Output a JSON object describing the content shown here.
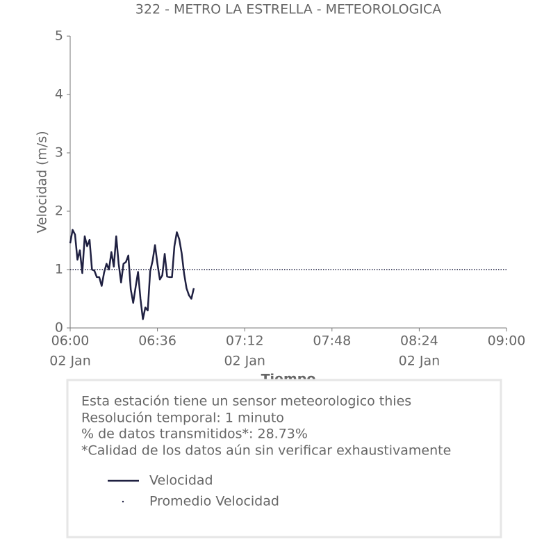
{
  "chart_data": {
    "type": "line",
    "title": "322 - METRO LA ESTRELLA - METEOROLOGICA",
    "y_label": "Velocidad (m/s)",
    "x_label": "Tiempo",
    "x": [
      "06:00",
      "06:01",
      "06:02",
      "06:03",
      "06:04",
      "06:05",
      "06:06",
      "06:07",
      "06:08",
      "06:09",
      "06:10",
      "06:11",
      "06:12",
      "06:13",
      "06:14",
      "06:15",
      "06:16",
      "06:17",
      "06:18",
      "06:19",
      "06:20",
      "06:21",
      "06:22",
      "06:23",
      "06:24",
      "06:25",
      "06:26",
      "06:27",
      "06:28",
      "06:29",
      "06:30",
      "06:31",
      "06:32",
      "06:33",
      "06:34",
      "06:35",
      "06:36",
      "06:37",
      "06:38",
      "06:39",
      "06:40",
      "06:41",
      "06:42",
      "06:43",
      "06:44",
      "06:45",
      "06:46",
      "06:47",
      "06:48",
      "06:49",
      "06:50",
      "06:51"
    ],
    "series": [
      {
        "name": "Velocidad",
        "color": "#1f2041",
        "values": [
          1.45,
          1.68,
          1.6,
          1.17,
          1.33,
          0.94,
          1.57,
          1.4,
          1.51,
          1.0,
          0.98,
          0.87,
          0.87,
          0.72,
          0.95,
          1.1,
          1.0,
          1.3,
          1.05,
          1.57,
          1.1,
          0.78,
          1.1,
          1.13,
          1.24,
          0.66,
          0.43,
          0.7,
          0.96,
          0.5,
          0.15,
          0.35,
          0.3,
          0.97,
          1.15,
          1.42,
          1.1,
          0.83,
          0.9,
          1.27,
          0.88,
          0.87,
          0.87,
          1.4,
          1.64,
          1.52,
          1.28,
          0.93,
          0.68,
          0.56,
          0.5,
          0.68
        ]
      },
      {
        "name": "Promedio Velocidad",
        "color": "#1f2041",
        "style": "dotted",
        "value": 1.0
      }
    ],
    "xlim": [
      "06:00",
      "09:00"
    ],
    "xticks": [
      "06:00",
      "06:36",
      "07:12",
      "07:48",
      "08:24",
      "09:00"
    ],
    "xtick_dates": [
      "02 Jan",
      null,
      "02 Jan",
      null,
      "02 Jan",
      null
    ],
    "ylim": [
      0,
      5
    ],
    "yticks": [
      0,
      1,
      2,
      3,
      4,
      5
    ],
    "grid": false
  },
  "info": {
    "lines": [
      "Esta estación tiene un sensor meteorologico thies",
      "Resolución temporal: 1 minuto",
      "% de datos transmitidos*: 28.73%",
      "*Calidad de los datos aún sin verificar exhaustivamente"
    ]
  }
}
